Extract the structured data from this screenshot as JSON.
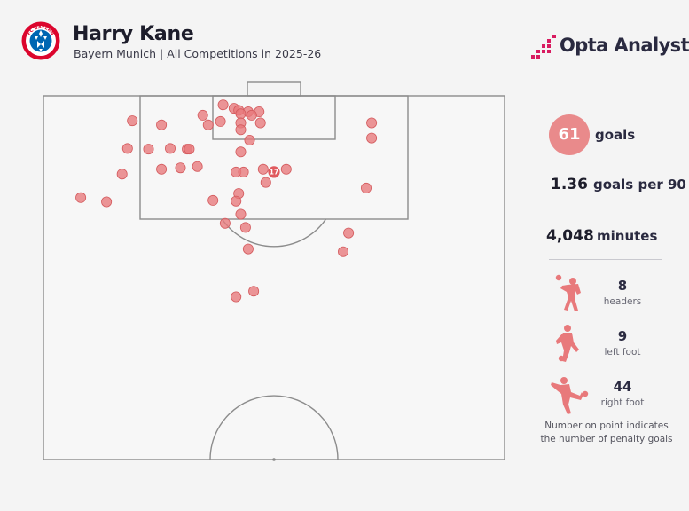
{
  "header": {
    "title": "Harry Kane",
    "subtitle": "Bayern Munich | All Competitions in 2025-26",
    "badge_text": "FC BAYERN MÜNCHEN",
    "brand": "Opta Analyst"
  },
  "stats": {
    "goals_value": "61",
    "goals_label": "goals",
    "per90_value": "1.36",
    "per90_label": "goals per 90",
    "minutes_value": "4,048",
    "minutes_label": "minutes"
  },
  "goal_types": [
    {
      "value": "8",
      "label": "headers",
      "icon": "header-silhouette-icon"
    },
    {
      "value": "9",
      "label": "left foot",
      "icon": "left-foot-silhouette-icon"
    },
    {
      "value": "44",
      "label": "right foot",
      "icon": "right-foot-silhouette-icon"
    }
  ],
  "note": {
    "line1": "Number on point indicates",
    "line2": "the number of penalty goals"
  },
  "colors": {
    "dot_fill": "#e8797b",
    "dot_stroke": "#d45b5e",
    "accent": "#e98a8b",
    "pitch_line": "#8c8c8c",
    "brand_icon": "#d81b60"
  },
  "chart_data": {
    "type": "scatter",
    "description_units": "pitch metres: x = across pitch from left touchline (0-68), y = distance from attacking goal line (0-52.5, half pitch)",
    "xlim": [
      0,
      68
    ],
    "ylim": [
      0,
      52.5
    ],
    "penalty_spot_label": "17",
    "shots": [
      [
        26.5,
        1.3
      ],
      [
        28.1,
        1.8
      ],
      [
        28.8,
        2.1
      ],
      [
        30.2,
        2.3
      ],
      [
        31.8,
        2.3
      ],
      [
        23.5,
        2.8
      ],
      [
        29.1,
        2.6
      ],
      [
        30.7,
        2.8
      ],
      [
        13.1,
        3.6
      ],
      [
        26.1,
        3.7
      ],
      [
        29.1,
        3.9
      ],
      [
        32.0,
        3.9
      ],
      [
        48.4,
        3.9
      ],
      [
        17.4,
        4.2
      ],
      [
        24.3,
        4.2
      ],
      [
        29.1,
        4.9
      ],
      [
        48.4,
        6.1
      ],
      [
        30.4,
        6.4
      ],
      [
        12.4,
        7.6
      ],
      [
        15.5,
        7.7
      ],
      [
        18.7,
        7.6
      ],
      [
        21.2,
        7.7
      ],
      [
        21.5,
        7.7
      ],
      [
        29.1,
        8.1
      ],
      [
        22.7,
        10.2
      ],
      [
        17.4,
        10.6
      ],
      [
        35.8,
        10.6
      ],
      [
        20.2,
        10.4
      ],
      [
        28.4,
        11.0
      ],
      [
        32.4,
        10.6
      ],
      [
        11.6,
        11.3
      ],
      [
        32.8,
        12.5
      ],
      [
        47.6,
        13.3
      ],
      [
        28.8,
        14.1
      ],
      [
        5.5,
        14.7
      ],
      [
        9.3,
        15.3
      ],
      [
        25.0,
        15.1
      ],
      [
        28.4,
        15.2
      ],
      [
        29.1,
        17.1
      ],
      [
        26.8,
        18.4
      ],
      [
        29.8,
        19.0
      ],
      [
        45.0,
        19.8
      ],
      [
        30.2,
        22.1
      ],
      [
        44.2,
        22.5
      ],
      [
        28.4,
        29.0
      ],
      [
        31.0,
        28.2
      ],
      [
        29.5,
        11.0
      ]
    ]
  }
}
